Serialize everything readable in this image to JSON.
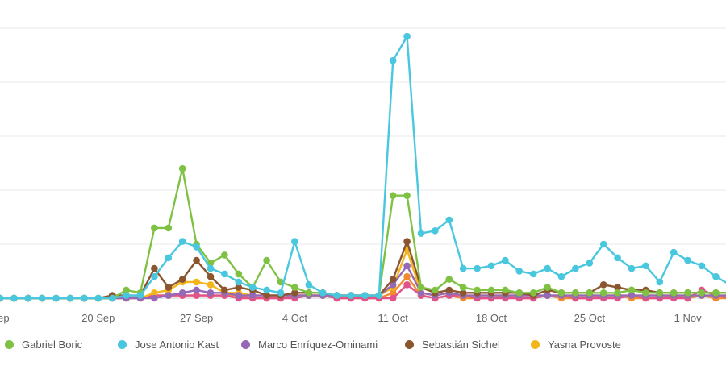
{
  "chart_data": {
    "type": "line",
    "x_tick_labels": [
      "Sep",
      "20 Sep",
      "27 Sep",
      "4 Oct",
      "11 Oct",
      "18 Oct",
      "25 Oct",
      "1 Nov"
    ],
    "x_ticks": [
      "2021-09-13",
      "2021-09-20",
      "2021-09-27",
      "2021-10-04",
      "2021-10-11",
      "2021-10-18",
      "2021-10-25",
      "2021-11-01"
    ],
    "x": [
      "2021-09-13",
      "2021-09-14",
      "2021-09-15",
      "2021-09-16",
      "2021-09-17",
      "2021-09-18",
      "2021-09-19",
      "2021-09-20",
      "2021-09-21",
      "2021-09-22",
      "2021-09-23",
      "2021-09-24",
      "2021-09-25",
      "2021-09-26",
      "2021-09-27",
      "2021-09-28",
      "2021-09-29",
      "2021-09-30",
      "2021-10-01",
      "2021-10-02",
      "2021-10-03",
      "2021-10-04",
      "2021-10-05",
      "2021-10-06",
      "2021-10-07",
      "2021-10-08",
      "2021-10-09",
      "2021-10-10",
      "2021-10-11",
      "2021-10-12",
      "2021-10-13",
      "2021-10-14",
      "2021-10-15",
      "2021-10-16",
      "2021-10-17",
      "2021-10-18",
      "2021-10-19",
      "2021-10-20",
      "2021-10-21",
      "2021-10-22",
      "2021-10-23",
      "2021-10-24",
      "2021-10-25",
      "2021-10-26",
      "2021-10-27",
      "2021-10-28",
      "2021-10-29",
      "2021-10-30",
      "2021-10-31",
      "2021-11-01",
      "2021-11-02",
      "2021-11-03",
      "2021-11-04",
      "2021-11-05"
    ],
    "ylim": [
      0,
      100
    ],
    "grid": true,
    "legend_position": "bottom",
    "series": [
      {
        "name": "Gabriel Boric",
        "color": "#7fc243",
        "values": [
          0,
          0,
          0,
          0,
          0,
          0,
          0,
          0,
          0,
          3,
          2,
          26,
          26,
          48,
          20,
          13,
          16,
          9,
          4,
          14,
          6,
          4,
          2,
          2,
          1,
          1,
          1,
          1,
          38,
          38,
          4,
          3,
          7,
          4,
          3,
          3,
          3,
          2,
          2,
          4,
          2,
          2,
          2,
          2,
          2,
          3,
          2,
          2,
          2,
          2,
          2,
          2,
          2,
          2
        ]
      },
      {
        "name": "Jose Antonio Kast",
        "color": "#48c7df",
        "values": [
          0,
          0,
          0,
          0,
          0,
          0,
          0,
          0,
          0,
          1,
          1,
          8,
          15,
          21,
          19,
          11,
          9,
          6,
          4,
          3,
          2,
          21,
          5,
          2,
          1,
          1,
          1,
          1,
          88,
          97,
          24,
          25,
          29,
          11,
          11,
          12,
          14,
          10,
          9,
          11,
          8,
          11,
          13,
          20,
          15,
          11,
          12,
          6,
          17,
          14,
          12,
          8,
          5,
          3
        ]
      },
      {
        "name": "Marco Enríquez-Ominami",
        "color": "#9569b8",
        "values": [
          0,
          0,
          0,
          0,
          0,
          0,
          0,
          0,
          0,
          0,
          0,
          0,
          1,
          2,
          3,
          2,
          2,
          1,
          1,
          1,
          1,
          1,
          1,
          1,
          1,
          1,
          1,
          1,
          5,
          12,
          2,
          1,
          2,
          1,
          1,
          1,
          1,
          1,
          1,
          1,
          1,
          1,
          1,
          1,
          1,
          1,
          1,
          1,
          1,
          1,
          1,
          1,
          1,
          1
        ]
      },
      {
        "name": "Sebastián Sichel",
        "color": "#8b5530",
        "values": [
          0,
          0,
          0,
          0,
          0,
          0,
          0,
          0,
          1,
          1,
          1,
          11,
          4,
          7,
          14,
          8,
          3,
          4,
          3,
          1,
          1,
          2,
          2,
          2,
          1,
          1,
          1,
          1,
          7,
          21,
          4,
          2,
          3,
          2,
          2,
          2,
          2,
          2,
          1,
          3,
          2,
          2,
          2,
          5,
          4,
          3,
          3,
          2,
          2,
          2,
          2,
          2,
          2,
          1
        ]
      },
      {
        "name": "Yasna Provoste",
        "color": "#f4b51a",
        "values": [
          0,
          0,
          0,
          0,
          0,
          0,
          0,
          0,
          0,
          0,
          0,
          2,
          3,
          6,
          6,
          5,
          2,
          2,
          1,
          1,
          1,
          1,
          1,
          1,
          1,
          1,
          1,
          1,
          4,
          18,
          2,
          1,
          2,
          1,
          1,
          1,
          1,
          1,
          1,
          1,
          1,
          1,
          1,
          1,
          1,
          1,
          1,
          1,
          1,
          1,
          1,
          1,
          1,
          1
        ]
      },
      {
        "name": "",
        "color": "#e2518a",
        "values": [
          0,
          0,
          0,
          0,
          0,
          0,
          0,
          0,
          0,
          0,
          0,
          1,
          1,
          1,
          1,
          1,
          1,
          0,
          0,
          0,
          0,
          0,
          1,
          1,
          0,
          0,
          0,
          0,
          0,
          5,
          1,
          0,
          1,
          1,
          0,
          0,
          0,
          0,
          0,
          1,
          1,
          0,
          0,
          0,
          0,
          1,
          0,
          0,
          0,
          0,
          3,
          1,
          0,
          0
        ]
      },
      {
        "name": "",
        "color": "#f28b30",
        "values": [
          0,
          0,
          0,
          0,
          0,
          0,
          0,
          0,
          0,
          0,
          0,
          1,
          1,
          1,
          1,
          1,
          1,
          1,
          0,
          0,
          0,
          1,
          1,
          1,
          0,
          0,
          0,
          0,
          2,
          8,
          1,
          0,
          1,
          0,
          0,
          0,
          1,
          0,
          0,
          1,
          0,
          0,
          0,
          1,
          1,
          0,
          0,
          0,
          1,
          0,
          1,
          0,
          0,
          0
        ]
      }
    ]
  }
}
